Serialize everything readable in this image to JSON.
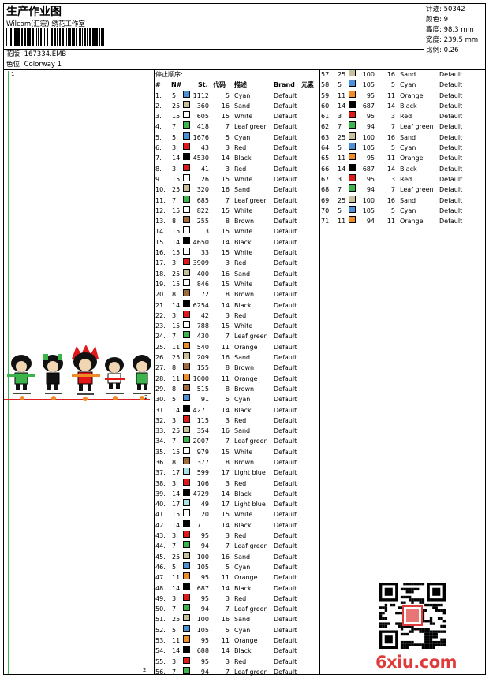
{
  "header": {
    "title": "生产作业图",
    "subtitle": "Wilcom(汇宏) 绣花工作室",
    "pattern_label": "花版: 167334.EMB",
    "colorway_label": "色位: Colorway 1"
  },
  "stats": {
    "stitches": "针迹: 50342",
    "colors": "颜色: 9",
    "height": "高度: 98.3 mm",
    "width": "宽度: 239.5 mm",
    "ratio": "比例: 0.26"
  },
  "table": {
    "stop_order_label": "停止顺序:",
    "headers": [
      "#",
      "N#",
      "St.",
      "代码",
      "描述",
      "Brand",
      "元素"
    ]
  },
  "preview": {
    "marker_top": "1",
    "marker_right": "2",
    "marker_bottom": "2"
  },
  "swatch_colors": {
    "Cyan": "#4a90d9",
    "Sand": "#c8c09a",
    "White": "#ffffff",
    "Leaf green": "#3cb44b",
    "Red": "#e01818",
    "Black": "#000000",
    "Brown": "#a06a3a",
    "Orange": "#f08c28",
    "Light blue": "#a8e4e4"
  },
  "rows": [
    [
      "1.",
      "5",
      "1112",
      "5",
      "Cyan",
      "Default"
    ],
    [
      "2.",
      "25",
      "360",
      "16",
      "Sand",
      "Default"
    ],
    [
      "3.",
      "15",
      "605",
      "15",
      "White",
      "Default"
    ],
    [
      "4.",
      "7",
      "418",
      "7",
      "Leaf green",
      "Default"
    ],
    [
      "5.",
      "5",
      "1676",
      "5",
      "Cyan",
      "Default"
    ],
    [
      "6.",
      "3",
      "43",
      "3",
      "Red",
      "Default"
    ],
    [
      "7.",
      "14",
      "4530",
      "14",
      "Black",
      "Default"
    ],
    [
      "8.",
      "3",
      "41",
      "3",
      "Red",
      "Default"
    ],
    [
      "9.",
      "15",
      "26",
      "15",
      "White",
      "Default"
    ],
    [
      "10.",
      "25",
      "320",
      "16",
      "Sand",
      "Default"
    ],
    [
      "11.",
      "7",
      "685",
      "7",
      "Leaf green",
      "Default"
    ],
    [
      "12.",
      "15",
      "822",
      "15",
      "White",
      "Default"
    ],
    [
      "13.",
      "8",
      "255",
      "8",
      "Brown",
      "Default"
    ],
    [
      "14.",
      "15",
      "3",
      "15",
      "White",
      "Default"
    ],
    [
      "15.",
      "14",
      "4650",
      "14",
      "Black",
      "Default"
    ],
    [
      "16.",
      "15",
      "33",
      "15",
      "White",
      "Default"
    ],
    [
      "17.",
      "3",
      "3909",
      "3",
      "Red",
      "Default"
    ],
    [
      "18.",
      "25",
      "400",
      "16",
      "Sand",
      "Default"
    ],
    [
      "19.",
      "15",
      "846",
      "15",
      "White",
      "Default"
    ],
    [
      "20.",
      "8",
      "72",
      "8",
      "Brown",
      "Default"
    ],
    [
      "21.",
      "14",
      "6254",
      "14",
      "Black",
      "Default"
    ],
    [
      "22.",
      "3",
      "42",
      "3",
      "Red",
      "Default"
    ],
    [
      "23.",
      "15",
      "788",
      "15",
      "White",
      "Default"
    ],
    [
      "24.",
      "7",
      "430",
      "7",
      "Leaf green",
      "Default"
    ],
    [
      "25.",
      "11",
      "540",
      "11",
      "Orange",
      "Default"
    ],
    [
      "26.",
      "25",
      "209",
      "16",
      "Sand",
      "Default"
    ],
    [
      "27.",
      "8",
      "155",
      "8",
      "Brown",
      "Default"
    ],
    [
      "28.",
      "11",
      "1000",
      "11",
      "Orange",
      "Default"
    ],
    [
      "29.",
      "8",
      "515",
      "8",
      "Brown",
      "Default"
    ],
    [
      "30.",
      "5",
      "91",
      "5",
      "Cyan",
      "Default"
    ],
    [
      "31.",
      "14",
      "4271",
      "14",
      "Black",
      "Default"
    ],
    [
      "32.",
      "3",
      "115",
      "3",
      "Red",
      "Default"
    ],
    [
      "33.",
      "25",
      "354",
      "16",
      "Sand",
      "Default"
    ],
    [
      "34.",
      "7",
      "2007",
      "7",
      "Leaf green",
      "Default"
    ],
    [
      "35.",
      "15",
      "979",
      "15",
      "White",
      "Default"
    ],
    [
      "36.",
      "8",
      "377",
      "8",
      "Brown",
      "Default"
    ],
    [
      "37.",
      "17",
      "599",
      "17",
      "Light blue",
      "Default"
    ],
    [
      "38.",
      "3",
      "106",
      "3",
      "Red",
      "Default"
    ],
    [
      "39.",
      "14",
      "4729",
      "14",
      "Black",
      "Default"
    ],
    [
      "40.",
      "17",
      "49",
      "17",
      "Light blue",
      "Default"
    ],
    [
      "41.",
      "15",
      "20",
      "15",
      "White",
      "Default"
    ],
    [
      "42.",
      "14",
      "711",
      "14",
      "Black",
      "Default"
    ],
    [
      "43.",
      "3",
      "95",
      "3",
      "Red",
      "Default"
    ],
    [
      "44.",
      "7",
      "94",
      "7",
      "Leaf green",
      "Default"
    ],
    [
      "45.",
      "25",
      "100",
      "16",
      "Sand",
      "Default"
    ],
    [
      "46.",
      "5",
      "105",
      "5",
      "Cyan",
      "Default"
    ],
    [
      "47.",
      "11",
      "95",
      "11",
      "Orange",
      "Default"
    ],
    [
      "48.",
      "14",
      "687",
      "14",
      "Black",
      "Default"
    ],
    [
      "49.",
      "3",
      "95",
      "3",
      "Red",
      "Default"
    ],
    [
      "50.",
      "7",
      "94",
      "7",
      "Leaf green",
      "Default"
    ],
    [
      "51.",
      "25",
      "100",
      "16",
      "Sand",
      "Default"
    ],
    [
      "52.",
      "5",
      "105",
      "5",
      "Cyan",
      "Default"
    ],
    [
      "53.",
      "11",
      "95",
      "11",
      "Orange",
      "Default"
    ],
    [
      "54.",
      "14",
      "688",
      "14",
      "Black",
      "Default"
    ],
    [
      "55.",
      "3",
      "95",
      "3",
      "Red",
      "Default"
    ],
    [
      "56.",
      "7",
      "94",
      "7",
      "Leaf green",
      "Default"
    ],
    [
      "57.",
      "25",
      "100",
      "16",
      "Sand",
      "Default"
    ],
    [
      "58.",
      "5",
      "105",
      "5",
      "Cyan",
      "Default"
    ],
    [
      "59.",
      "11",
      "95",
      "11",
      "Orange",
      "Default"
    ],
    [
      "60.",
      "14",
      "687",
      "14",
      "Black",
      "Default"
    ],
    [
      "61.",
      "3",
      "95",
      "3",
      "Red",
      "Default"
    ],
    [
      "62.",
      "7",
      "94",
      "7",
      "Leaf green",
      "Default"
    ],
    [
      "63.",
      "25",
      "100",
      "16",
      "Sand",
      "Default"
    ],
    [
      "64.",
      "5",
      "105",
      "5",
      "Cyan",
      "Default"
    ],
    [
      "65.",
      "11",
      "95",
      "11",
      "Orange",
      "Default"
    ],
    [
      "66.",
      "14",
      "687",
      "14",
      "Black",
      "Default"
    ],
    [
      "67.",
      "3",
      "95",
      "3",
      "Red",
      "Default"
    ],
    [
      "68.",
      "7",
      "94",
      "7",
      "Leaf green",
      "Default"
    ],
    [
      "69.",
      "25",
      "100",
      "16",
      "Sand",
      "Default"
    ],
    [
      "70.",
      "5",
      "105",
      "5",
      "Cyan",
      "Default"
    ],
    [
      "71.",
      "11",
      "94",
      "11",
      "Orange",
      "Default"
    ]
  ],
  "watermark": "6xiu.com"
}
